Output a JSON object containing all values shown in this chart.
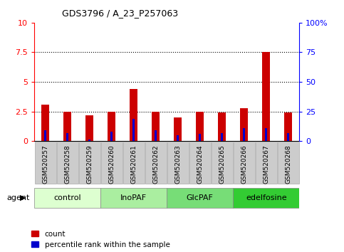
{
  "title": "GDS3796 / A_23_P257063",
  "samples": [
    "GSM520257",
    "GSM520258",
    "GSM520259",
    "GSM520260",
    "GSM520261",
    "GSM520262",
    "GSM520263",
    "GSM520264",
    "GSM520265",
    "GSM520266",
    "GSM520267",
    "GSM520268"
  ],
  "count_values": [
    3.1,
    2.45,
    2.2,
    2.45,
    4.4,
    2.5,
    2.0,
    2.5,
    2.4,
    2.8,
    7.5,
    2.4
  ],
  "percentile_values": [
    9,
    7,
    1.5,
    8,
    19,
    9,
    5,
    6,
    7,
    11,
    11,
    7
  ],
  "count_bar_width": 0.35,
  "pct_bar_width": 0.1,
  "count_color": "#cc0000",
  "percentile_color": "#0000cc",
  "ylim_left": [
    0,
    10
  ],
  "ylim_right": [
    0,
    100
  ],
  "yticks_left": [
    0,
    2.5,
    5,
    7.5,
    10
  ],
  "yticks_right": [
    0,
    25,
    50,
    75,
    100
  ],
  "groups": [
    {
      "label": "control",
      "start": 0,
      "end": 3,
      "color": "#ddffd0"
    },
    {
      "label": "InoPAF",
      "start": 3,
      "end": 6,
      "color": "#aaeea0"
    },
    {
      "label": "GlcPAF",
      "start": 6,
      "end": 9,
      "color": "#77dd77"
    },
    {
      "label": "edelfosine",
      "start": 9,
      "end": 12,
      "color": "#33cc33"
    }
  ],
  "agent_label": "agent",
  "legend_count": "count",
  "legend_percentile": "percentile rank within the sample",
  "bg_color": "#ffffff",
  "tick_bg_color": "#cccccc",
  "grid_color": "#000000",
  "spine_color": "#000000"
}
